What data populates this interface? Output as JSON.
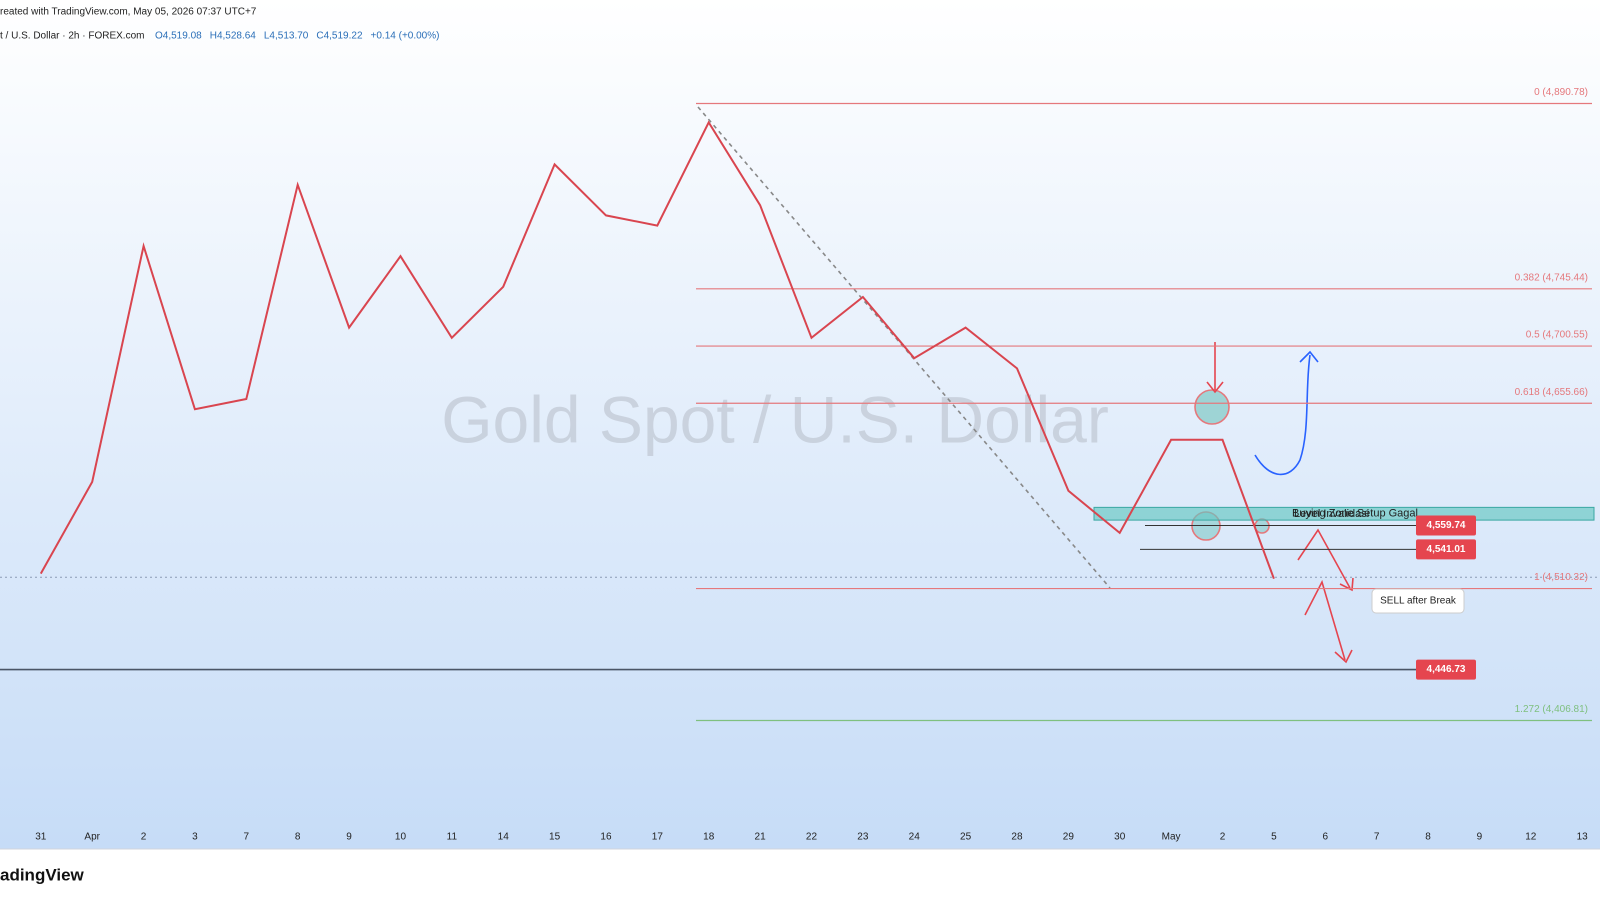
{
  "chart_data": {
    "type": "line",
    "credit": "reated with TradingView.com, May 05, 2026 07:37 UTC+7",
    "symbol": "t / U.S. Dollar · 2h · FOREX.com",
    "ohlc": [
      {
        "value": 4519.08,
        "label": "O4,519.08"
      },
      {
        "value": 4528.64,
        "label": "H4,528.64"
      },
      {
        "value": 4513.7,
        "label": "L4,513.70"
      },
      {
        "value": 4519.22,
        "label": "C4,519.22"
      }
    ],
    "change": {
      "value": 0.14,
      "label": "+0.14 (+0.00%)"
    },
    "watermark": "Gold Spot / U.S. Dollar",
    "brand": "adingView",
    "categories": [
      "31",
      "Apr",
      "2",
      "3",
      "7",
      "8",
      "9",
      "10",
      "11",
      "14",
      "15",
      "16",
      "17",
      "18",
      "21",
      "22",
      "23",
      "24",
      "25",
      "28",
      "29",
      "30",
      "May",
      "2",
      "5",
      "6",
      "7",
      "8",
      "9",
      "12",
      "13"
    ],
    "series": [
      {
        "name": "Gold Spot",
        "color": "#d9454f",
        "values": [
          4522,
          4594,
          4779,
          4651,
          4659,
          4827,
          4715,
          4771,
          4707,
          4747,
          4843,
          4803,
          4795,
          4876,
          4811,
          4707,
          4739,
          4691,
          4715,
          4683,
          4587,
          4554,
          4627,
          4627,
          4518,
          null,
          null,
          null,
          null,
          null,
          null
        ]
      }
    ],
    "ylim": [
      4306,
      4972
    ],
    "fib_levels": [
      {
        "value": 4890.78,
        "label": "0 (4,890.78)",
        "color": "#e5787c"
      },
      {
        "value": 4745.44,
        "label": "0.382 (4,745.44)",
        "color": "#e5787c"
      },
      {
        "value": 4700.55,
        "label": "0.5 (4,700.55)",
        "color": "#e5787c"
      },
      {
        "value": 4655.66,
        "label": "0.618 (4,655.66)",
        "color": "#e5787c"
      },
      {
        "value": 4510.32,
        "label": "1 (4,510.32)",
        "color": "#e5787c"
      },
      {
        "value": 4406.81,
        "label": "1.272 (4,406.81)",
        "color": "#7fc07f"
      }
    ],
    "price_tags": [
      {
        "value": 4559.74,
        "label": "4,559.74"
      },
      {
        "value": 4541.01,
        "label": "4,541.01"
      },
      {
        "value": 4446.73,
        "label": "4,446.73"
      }
    ],
    "zone": {
      "label": "Buying Zone Setup Gagal",
      "range": [
        4564,
        4574
      ]
    },
    "invalidation_label": "Level Invalidasi",
    "sell_label": "SELL after Break"
  }
}
